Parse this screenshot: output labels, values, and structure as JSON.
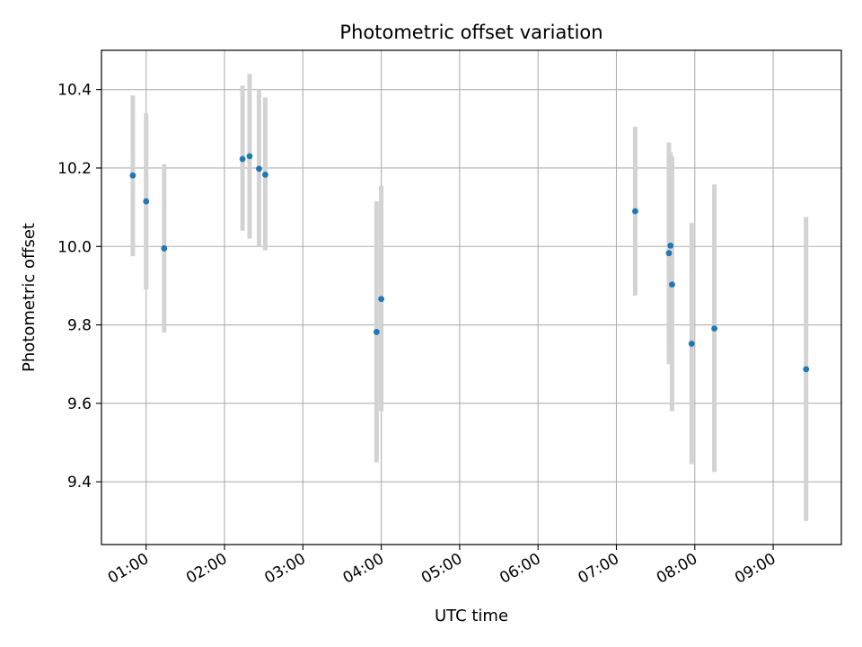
{
  "chart_data": {
    "type": "scatter",
    "title": "Photometric offset variation",
    "xlabel": "UTC time",
    "ylabel": "Photometric offset",
    "x_unit": "hours UTC",
    "xlim": [
      0.43,
      9.87
    ],
    "ylim": [
      9.24,
      10.5
    ],
    "grid": true,
    "x_ticks": [
      {
        "value": 1,
        "label": "01:00"
      },
      {
        "value": 2,
        "label": "02:00"
      },
      {
        "value": 3,
        "label": "03:00"
      },
      {
        "value": 4,
        "label": "04:00"
      },
      {
        "value": 5,
        "label": "05:00"
      },
      {
        "value": 6,
        "label": "06:00"
      },
      {
        "value": 7,
        "label": "07:00"
      },
      {
        "value": 8,
        "label": "08:00"
      },
      {
        "value": 9,
        "label": "09:00"
      }
    ],
    "y_ticks": [
      {
        "value": 9.4,
        "label": "9.4"
      },
      {
        "value": 9.6,
        "label": "9.6"
      },
      {
        "value": 9.8,
        "label": "9.8"
      },
      {
        "value": 10.0,
        "label": "10.0"
      },
      {
        "value": 10.2,
        "label": "10.2"
      },
      {
        "value": 10.4,
        "label": "10.4"
      }
    ],
    "colors": {
      "point": "#1f77b4",
      "errorbar": "#d3d3d3",
      "grid": "#b0b0b0"
    },
    "points": [
      {
        "x": 0.83,
        "y": 10.181,
        "ylow": 9.975,
        "yhigh": 10.385
      },
      {
        "x": 1.0,
        "y": 10.115,
        "ylow": 9.89,
        "yhigh": 10.34
      },
      {
        "x": 1.23,
        "y": 9.995,
        "ylow": 9.78,
        "yhigh": 10.21
      },
      {
        "x": 2.23,
        "y": 10.223,
        "ylow": 10.04,
        "yhigh": 10.41
      },
      {
        "x": 2.32,
        "y": 10.23,
        "ylow": 10.02,
        "yhigh": 10.44
      },
      {
        "x": 2.44,
        "y": 10.198,
        "ylow": 10.0,
        "yhigh": 10.4
      },
      {
        "x": 2.52,
        "y": 10.183,
        "ylow": 9.99,
        "yhigh": 10.38
      },
      {
        "x": 3.94,
        "y": 9.782,
        "ylow": 9.45,
        "yhigh": 10.115
      },
      {
        "x": 4.0,
        "y": 9.866,
        "ylow": 9.58,
        "yhigh": 10.155
      },
      {
        "x": 7.24,
        "y": 10.09,
        "ylow": 9.875,
        "yhigh": 10.305
      },
      {
        "x": 7.67,
        "y": 9.983,
        "ylow": 9.7,
        "yhigh": 10.265
      },
      {
        "x": 7.69,
        "y": 10.002,
        "ylow": 9.76,
        "yhigh": 10.24
      },
      {
        "x": 7.71,
        "y": 9.903,
        "ylow": 9.58,
        "yhigh": 10.23
      },
      {
        "x": 7.96,
        "y": 9.752,
        "ylow": 9.445,
        "yhigh": 10.06
      },
      {
        "x": 8.25,
        "y": 9.791,
        "ylow": 9.425,
        "yhigh": 10.158
      },
      {
        "x": 9.42,
        "y": 9.687,
        "ylow": 9.3,
        "yhigh": 10.075
      }
    ]
  }
}
